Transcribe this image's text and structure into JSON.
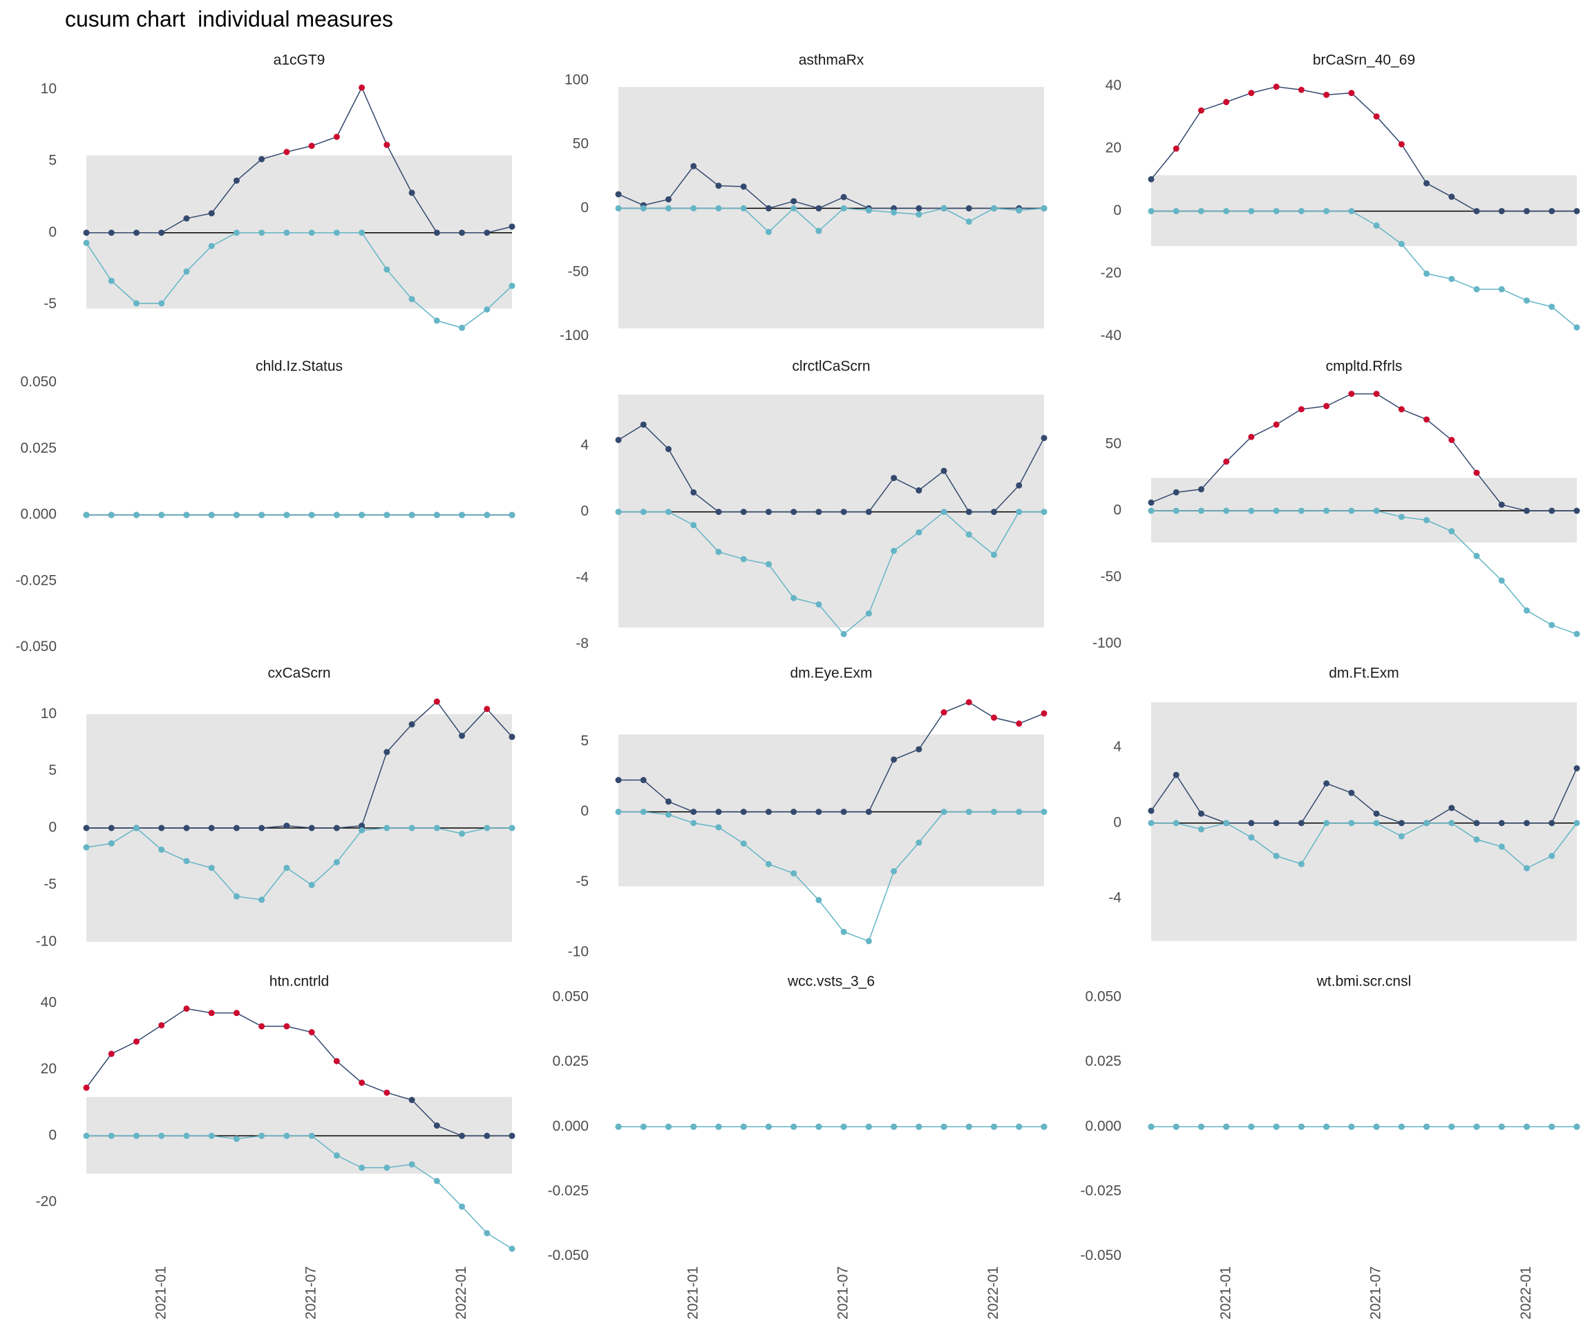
{
  "title": "cusum chart  individual measures",
  "chart_data": [
    {
      "type": "line",
      "title": "a1cGT9",
      "x": [
        "2020-10",
        "2020-11",
        "2020-12",
        "2021-01",
        "2021-02",
        "2021-03",
        "2021-04",
        "2021-05",
        "2021-06",
        "2021-07",
        "2021-08",
        "2021-09",
        "2021-10",
        "2021-11",
        "2021-12",
        "2022-01",
        "2022-02",
        "2022-03"
      ],
      "series": [
        {
          "color": "#34496e",
          "values": [
            0,
            0,
            0,
            0,
            1.0,
            1.36,
            3.64,
            5.14,
            5.64,
            6.07,
            6.7,
            10.14,
            6.14,
            2.79,
            0,
            0,
            0,
            0.43
          ]
        },
        {
          "color": "#64b5c6",
          "values": [
            -0.71,
            -3.36,
            -4.93,
            -4.93,
            -2.71,
            -0.93,
            0,
            0,
            0,
            0,
            0,
            0,
            -2.57,
            -4.64,
            -6.14,
            -6.64,
            -5.36,
            -3.71
          ]
        }
      ],
      "interval": [
        -5.3,
        5.4
      ],
      "signal_color": "#cc0a2f",
      "ylim": [
        -7.4,
        10.9
      ],
      "yticks": [
        -5,
        0,
        5,
        10
      ]
    },
    {
      "type": "line",
      "title": "asthmaRx",
      "x": [
        "2020-10",
        "2020-11",
        "2020-12",
        "2021-01",
        "2021-02",
        "2021-03",
        "2021-04",
        "2021-05",
        "2021-06",
        "2021-07",
        "2021-08",
        "2021-09",
        "2021-10",
        "2021-11",
        "2021-12",
        "2022-01",
        "2022-02",
        "2022-03"
      ],
      "series": [
        {
          "color": "#34496e",
          "values": [
            11,
            2.4,
            7,
            33,
            17.7,
            17,
            0,
            5.6,
            0,
            8.8,
            0,
            0,
            0,
            0,
            0,
            0,
            0,
            0
          ]
        },
        {
          "color": "#64b5c6",
          "values": [
            0,
            0,
            0,
            0,
            0,
            0,
            -18.5,
            0,
            -17.7,
            0,
            -1.6,
            -3.2,
            -4.8,
            0,
            -10.4,
            0,
            -1.6,
            0
          ]
        }
      ],
      "interval": [
        -94,
        95
      ],
      "signal_color": "#cc0a2f",
      "ylim": [
        -102,
        103
      ],
      "yticks": [
        -100,
        -50,
        0,
        50,
        100
      ]
    },
    {
      "type": "line",
      "title": "brCaSrn_40_69",
      "x": [
        "2020-10",
        "2020-11",
        "2020-12",
        "2021-01",
        "2021-02",
        "2021-03",
        "2021-04",
        "2021-05",
        "2021-06",
        "2021-07",
        "2021-08",
        "2021-09",
        "2021-10",
        "2021-11",
        "2021-12",
        "2022-01",
        "2022-02",
        "2022-03"
      ],
      "series": [
        {
          "color": "#34496e",
          "values": [
            10.2,
            20,
            32.2,
            34.9,
            37.8,
            39.8,
            38.8,
            37.2,
            37.8,
            30.3,
            21.4,
            8.9,
            4.6,
            0,
            0,
            0,
            0,
            0
          ]
        },
        {
          "color": "#64b5c6",
          "values": [
            0,
            0,
            0,
            0,
            0,
            0,
            0,
            0,
            0,
            -4.6,
            -10.5,
            -20,
            -21.7,
            -25,
            -25,
            -28.6,
            -30.6,
            -37.2
          ]
        }
      ],
      "interval": [
        -11.2,
        11.5
      ],
      "signal_color": "#cc0a2f",
      "ylim": [
        -40.8,
        43
      ],
      "yticks": [
        -40,
        -20,
        0,
        20,
        40
      ]
    },
    {
      "type": "line",
      "title": "chld.Iz.Status",
      "x": [
        "2020-10",
        "2020-11",
        "2020-12",
        "2021-01",
        "2021-02",
        "2021-03",
        "2021-04",
        "2021-05",
        "2021-06",
        "2021-07",
        "2021-08",
        "2021-09",
        "2021-10",
        "2021-11",
        "2021-12",
        "2022-01",
        "2022-02",
        "2022-03"
      ],
      "series": [
        {
          "color": "#34496e",
          "values": [
            0,
            0,
            0,
            0,
            0,
            0,
            0,
            0,
            0,
            0,
            0,
            0,
            0,
            0,
            0,
            0,
            0,
            0
          ]
        },
        {
          "color": "#64b5c6",
          "values": [
            0,
            0,
            0,
            0,
            0,
            0,
            0,
            0,
            0,
            0,
            0,
            0,
            0,
            0,
            0,
            0,
            0,
            0
          ]
        }
      ],
      "signal_color": "#cc0a2f",
      "ylim": [
        -0.0535,
        0.052
      ],
      "yticks": [
        {
          "value": -0.05,
          "label": "-0.050"
        },
        -0.025,
        {
          "value": 0,
          "label": "0.000"
        },
        0.025,
        {
          "value": 0.05,
          "label": "0.050"
        }
      ]
    },
    {
      "type": "line",
      "title": "clrctlCaScrn",
      "x": [
        "2020-10",
        "2020-11",
        "2020-12",
        "2021-01",
        "2021-02",
        "2021-03",
        "2021-04",
        "2021-05",
        "2021-06",
        "2021-07",
        "2021-08",
        "2021-09",
        "2021-10",
        "2021-11",
        "2021-12",
        "2022-01",
        "2022-02",
        "2022-03"
      ],
      "series": [
        {
          "color": "#34496e",
          "values": [
            4.35,
            5.28,
            3.8,
            1.18,
            0,
            0,
            0,
            0,
            0,
            0,
            0,
            2.05,
            1.3,
            2.48,
            0,
            0,
            1.6,
            4.47
          ]
        },
        {
          "color": "#64b5c6",
          "values": [
            0,
            0,
            0,
            -0.8,
            -2.42,
            -2.86,
            -3.17,
            -5.22,
            -5.6,
            -7.4,
            -6.15,
            -2.36,
            -1.24,
            0,
            -1.37,
            -2.6,
            0,
            0
          ]
        }
      ],
      "interval": [
        -7.0,
        7.1
      ],
      "signal_color": "#cc0a2f",
      "ylim": [
        -8.76,
        8.14
      ],
      "yticks": [
        -8,
        -4,
        0,
        4
      ]
    },
    {
      "type": "line",
      "title": "cmpltd.Rfrls",
      "x": [
        "2020-10",
        "2020-11",
        "2020-12",
        "2021-01",
        "2021-02",
        "2021-03",
        "2021-04",
        "2021-05",
        "2021-06",
        "2021-07",
        "2021-08",
        "2021-09",
        "2021-10",
        "2021-11",
        "2021-12",
        "2022-01",
        "2022-02",
        "2022-03"
      ],
      "series": [
        {
          "color": "#34496e",
          "values": [
            6.2,
            13.9,
            16.2,
            37,
            55.6,
            64.9,
            76.4,
            78.8,
            88,
            88,
            76.4,
            68.7,
            53.3,
            28.6,
            4.6,
            0,
            0,
            0
          ]
        },
        {
          "color": "#64b5c6",
          "values": [
            0,
            0,
            0,
            0,
            0,
            0,
            0,
            0,
            0,
            0,
            -4.6,
            -7,
            -15.4,
            -34,
            -52.5,
            -75,
            -86,
            -92.7
          ]
        }
      ],
      "interval": [
        -23.9,
        24.7
      ],
      "signal_color": "#cc0a2f",
      "ylim": [
        -109.7,
        100.4
      ],
      "yticks": [
        -100,
        -50,
        0,
        50
      ]
    },
    {
      "type": "line",
      "title": "cxCaScrn",
      "x": [
        "2020-10",
        "2020-11",
        "2020-12",
        "2021-01",
        "2021-02",
        "2021-03",
        "2021-04",
        "2021-05",
        "2021-06",
        "2021-07",
        "2021-08",
        "2021-09",
        "2021-10",
        "2021-11",
        "2021-12",
        "2022-01",
        "2022-02",
        "2022-03"
      ],
      "series": [
        {
          "color": "#34496e",
          "values": [
            0,
            0,
            0,
            0,
            0,
            0,
            0,
            0,
            0.2,
            0,
            0,
            0.2,
            6.67,
            9.1,
            11.1,
            8.1,
            10.45,
            8.0
          ]
        },
        {
          "color": "#64b5c6",
          "values": [
            -1.7,
            -1.35,
            0,
            -1.9,
            -2.9,
            -3.5,
            -6.0,
            -6.3,
            -3.5,
            -5.0,
            -3.0,
            -0.2,
            0,
            0,
            0,
            -0.5,
            0,
            0
          ]
        }
      ],
      "interval": [
        -10,
        10
      ],
      "signal_color": "#cc0a2f",
      "ylim": [
        -11.1,
        12.5
      ],
      "yticks": [
        -10,
        -5,
        0,
        5,
        10
      ]
    },
    {
      "type": "line",
      "title": "dm.Eye.Exm",
      "x": [
        "2020-10",
        "2020-11",
        "2020-12",
        "2021-01",
        "2021-02",
        "2021-03",
        "2021-04",
        "2021-05",
        "2021-06",
        "2021-07",
        "2021-08",
        "2021-09",
        "2021-10",
        "2021-11",
        "2021-12",
        "2022-01",
        "2022-02",
        "2022-03"
      ],
      "series": [
        {
          "color": "#34496e",
          "values": [
            2.26,
            2.26,
            0.73,
            0,
            0,
            0,
            0,
            0,
            0,
            0,
            0,
            3.72,
            4.45,
            7.08,
            7.8,
            6.7,
            6.28,
            7.0
          ]
        },
        {
          "color": "#64b5c6",
          "values": [
            0,
            0,
            -0.2,
            -0.8,
            -1.1,
            -2.26,
            -3.72,
            -4.38,
            -6.28,
            -8.54,
            -9.2,
            -4.23,
            -2.19,
            0,
            0,
            0,
            0,
            0
          ]
        }
      ],
      "interval": [
        -5.3,
        5.5
      ],
      "signal_color": "#cc0a2f",
      "ylim": [
        -10.15,
        8.98
      ],
      "yticks": [
        -10,
        -5,
        0,
        5
      ]
    },
    {
      "type": "line",
      "title": "dm.Ft.Exm",
      "x": [
        "2020-10",
        "2020-11",
        "2020-12",
        "2021-01",
        "2021-02",
        "2021-03",
        "2021-04",
        "2021-05",
        "2021-06",
        "2021-07",
        "2021-08",
        "2021-09",
        "2021-10",
        "2021-11",
        "2021-12",
        "2022-01",
        "2022-02",
        "2022-03"
      ],
      "series": [
        {
          "color": "#34496e",
          "values": [
            0.65,
            2.55,
            0.5,
            0,
            0,
            0,
            0,
            2.1,
            1.6,
            0.5,
            0,
            0,
            0.8,
            0,
            0,
            0,
            0,
            2.9
          ]
        },
        {
          "color": "#64b5c6",
          "values": [
            0,
            0,
            -0.33,
            0,
            -0.76,
            -1.74,
            -2.17,
            0,
            0,
            0,
            -0.7,
            0,
            0,
            -0.87,
            -1.25,
            -2.39,
            -1.74,
            0
          ]
        }
      ],
      "interval": [
        -6.25,
        6.4
      ],
      "signal_color": "#cc0a2f",
      "ylim": [
        -6.96,
        7.28
      ],
      "yticks": [
        -4,
        0,
        4
      ]
    },
    {
      "type": "line",
      "title": "htn.cntrld",
      "x": [
        "2020-10",
        "2020-11",
        "2020-12",
        "2021-01",
        "2021-02",
        "2021-03",
        "2021-04",
        "2021-05",
        "2021-06",
        "2021-07",
        "2021-08",
        "2021-09",
        "2021-10",
        "2021-11",
        "2021-12",
        "2022-01",
        "2022-02",
        "2022-03"
      ],
      "series": [
        {
          "color": "#34496e",
          "values": [
            14.5,
            24.7,
            28.4,
            33.3,
            38.3,
            37,
            37,
            33,
            33,
            31.2,
            22.5,
            16,
            13,
            10.8,
            3.1,
            0,
            0,
            0
          ]
        },
        {
          "color": "#64b5c6",
          "values": [
            0,
            0,
            0,
            0,
            0,
            0,
            -0.9,
            0,
            0,
            0,
            -5.9,
            -9.6,
            -9.6,
            -8.6,
            -13.6,
            -21.3,
            -29.3,
            -34
          ]
        }
      ],
      "interval": [
        -11.4,
        11.7
      ],
      "signal_color": "#cc0a2f",
      "ylim": [
        -38,
        43.8
      ],
      "yticks": [
        -20,
        0,
        20,
        40
      ],
      "xticks": [
        "2021-01",
        "2021-07",
        "2022-01"
      ]
    },
    {
      "type": "line",
      "title": "wcc.vsts_3_6",
      "x": [
        "2020-10",
        "2020-11",
        "2020-12",
        "2021-01",
        "2021-02",
        "2021-03",
        "2021-04",
        "2021-05",
        "2021-06",
        "2021-07",
        "2021-08",
        "2021-09",
        "2021-10",
        "2021-11",
        "2021-12",
        "2022-01",
        "2022-02",
        "2022-03"
      ],
      "series": [
        {
          "color": "#34496e",
          "values": [
            0,
            0,
            0,
            0,
            0,
            0,
            0,
            0,
            0,
            0,
            0,
            0,
            0,
            0,
            0,
            0,
            0,
            0
          ]
        },
        {
          "color": "#64b5c6",
          "values": [
            0,
            0,
            0,
            0,
            0,
            0,
            0,
            0,
            0,
            0,
            0,
            0,
            0,
            0,
            0,
            0,
            0,
            0
          ]
        }
      ],
      "signal_color": "#cc0a2f",
      "ylim": [
        -0.0523,
        0.0527
      ],
      "yticks": [
        {
          "value": -0.05,
          "label": "-0.050"
        },
        -0.025,
        {
          "value": 0,
          "label": "0.000"
        },
        0.025,
        {
          "value": 0.05,
          "label": "0.050"
        }
      ],
      "xticks": [
        "2021-01",
        "2021-07",
        "2022-01"
      ]
    },
    {
      "type": "line",
      "title": "wt.bmi.scr.cnsl",
      "x": [
        "2020-10",
        "2020-11",
        "2020-12",
        "2021-01",
        "2021-02",
        "2021-03",
        "2021-04",
        "2021-05",
        "2021-06",
        "2021-07",
        "2021-08",
        "2021-09",
        "2021-10",
        "2021-11",
        "2021-12",
        "2022-01",
        "2022-02",
        "2022-03"
      ],
      "series": [
        {
          "color": "#34496e",
          "values": [
            0,
            0,
            0,
            0,
            0,
            0,
            0,
            0,
            0,
            0,
            0,
            0,
            0,
            0,
            0,
            0,
            0,
            0
          ]
        },
        {
          "color": "#64b5c6",
          "values": [
            0,
            0,
            0,
            0,
            0,
            0,
            0,
            0,
            0,
            0,
            0,
            0,
            0,
            0,
            0,
            0,
            0,
            0
          ]
        }
      ],
      "signal_color": "#cc0a2f",
      "ylim": [
        -0.0523,
        0.0527
      ],
      "yticks": [
        {
          "value": -0.05,
          "label": "-0.050"
        },
        -0.025,
        {
          "value": 0,
          "label": "0.000"
        },
        0.025,
        {
          "value": 0.05,
          "label": "0.050"
        }
      ],
      "xticks": [
        "2021-01",
        "2021-07",
        "2022-01"
      ]
    }
  ]
}
